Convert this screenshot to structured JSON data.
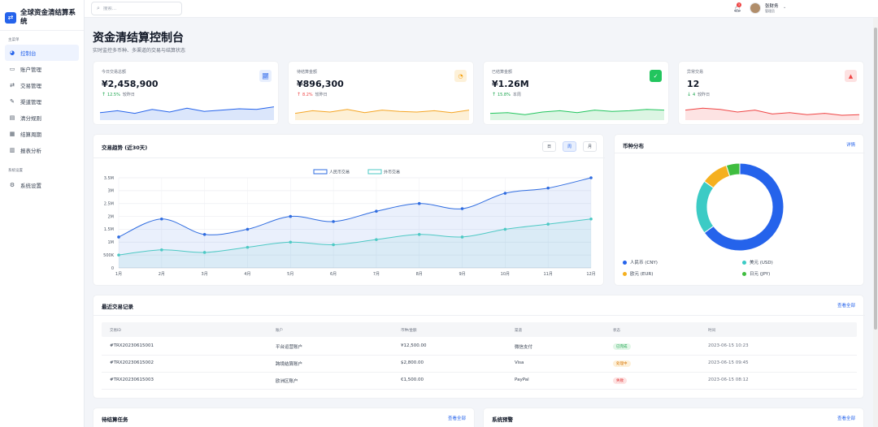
{
  "brand": {
    "name": "全球资金清结算系统",
    "icon": "exchange-icon"
  },
  "sidebar": {
    "section_main": "主菜单",
    "section_settings": "系统设置",
    "items": [
      {
        "label": "控制台",
        "icon": "dashboard-icon"
      },
      {
        "label": "账户管理",
        "icon": "card-icon"
      },
      {
        "label": "交易管理",
        "icon": "exchange-icon"
      },
      {
        "label": "渠道管理",
        "icon": "plug-icon"
      },
      {
        "label": "清分规则",
        "icon": "rule-icon"
      },
      {
        "label": "结算周期",
        "icon": "calendar-icon"
      },
      {
        "label": "报表分析",
        "icon": "chart-icon"
      }
    ],
    "settings_item": {
      "label": "系统设置",
      "icon": "gear-icon"
    }
  },
  "topbar": {
    "search_placeholder": "搜索...",
    "notification_count": "3",
    "user_name": "张财务",
    "user_role": "管理员"
  },
  "page": {
    "title": "资金清结算控制台",
    "subtitle": "实时监控多币种、多渠道的交易与结算状态"
  },
  "kpis": [
    {
      "label": "今日交易总额",
      "value": "¥2,458,900",
      "trend": "12.5%",
      "trend_note": "较昨日",
      "direction": "up",
      "trend_color": "#16a34a",
      "icon": "trend-chart-icon",
      "icon_color": "#2563eb",
      "icon_bg": "#e8effd",
      "line_color": "#2563eb",
      "fill_color": "#dbe6fb"
    },
    {
      "label": "待结算金额",
      "value": "¥896,300",
      "trend": "8.2%",
      "trend_note": "较昨日",
      "direction": "up",
      "trend_color": "#ef4444",
      "icon": "clock-icon",
      "icon_color": "#f59e0b",
      "icon_bg": "#fdf1d9",
      "line_color": "#f5a524",
      "fill_color": "#fdf0d6"
    },
    {
      "label": "已结算金额",
      "value": "¥1.26M",
      "trend": "15.8%",
      "trend_note": "本周",
      "direction": "up",
      "trend_color": "#16a34a",
      "icon": "check-icon",
      "icon_color": "#ffffff",
      "icon_bg": "#22c55e",
      "line_color": "#22c55e",
      "fill_color": "#dcf5e3"
    },
    {
      "label": "异常交易",
      "value": "12",
      "trend": "4",
      "trend_note": "较昨日",
      "direction": "down",
      "trend_color": "#16a34a",
      "icon": "warning-icon",
      "icon_color": "#ef4444",
      "icon_bg": "#fde2e2",
      "line_color": "#ef4444",
      "fill_color": "#fde3e3"
    }
  ],
  "trend_card": {
    "title": "交易趋势 (近30天)",
    "segments": [
      {
        "label": "日",
        "active": false
      },
      {
        "label": "周",
        "active": true
      },
      {
        "label": "月",
        "active": false
      }
    ]
  },
  "chart_data": [
    {
      "type": "line",
      "title": "交易趋势 (近30天)",
      "categories": [
        "1月",
        "2月",
        "3月",
        "4月",
        "5月",
        "6月",
        "7月",
        "8月",
        "9月",
        "10月",
        "11月",
        "12月"
      ],
      "series": [
        {
          "name": "人民币交易",
          "values": [
            1200000,
            1900000,
            1300000,
            1500000,
            2000000,
            1800000,
            2200000,
            2500000,
            2300000,
            2900000,
            3100000,
            3500000
          ],
          "color": "#2f6ce0"
        },
        {
          "name": "外币交易",
          "values": [
            500000,
            700000,
            600000,
            800000,
            1000000,
            900000,
            1100000,
            1300000,
            1200000,
            1500000,
            1700000,
            1900000
          ],
          "color": "#4dc9c4"
        }
      ],
      "y_ticks": [
        "0",
        "500K",
        "1M",
        "1.5M",
        "2M",
        "2.5M",
        "3M",
        "3.5M"
      ],
      "ylim": [
        0,
        3500000
      ],
      "grid": true,
      "legend": "top-center"
    },
    {
      "type": "pie",
      "title": "币种分布",
      "categories": [
        "人民币 (CNY)",
        "美元 (USD)",
        "欧元 (EUR)",
        "日元 (JPY)"
      ],
      "values": [
        65,
        20,
        10,
        5
      ],
      "colors": [
        "#2563eb",
        "#3ccbc5",
        "#f5b01f",
        "#3fbd3f"
      ],
      "legend": "bottom"
    }
  ],
  "currency_card": {
    "title": "币种分布",
    "link": "详情"
  },
  "transactions": {
    "title": "最近交易记录",
    "link": "查看全部",
    "headers": [
      "交易ID",
      "账户",
      "币种/金额",
      "渠道",
      "状态",
      "时间"
    ],
    "rows": [
      {
        "id": "#TRX20230615001",
        "account": "平台运营账户",
        "amount": "¥12,500.00",
        "channel": "微信支付",
        "status": "已完成",
        "status_color": "#16a34a",
        "status_bg": "#e3f6e8",
        "time": "2023-06-15 10:23"
      },
      {
        "id": "#TRX20230615002",
        "account": "跨境结算账户",
        "amount": "$2,800.00",
        "channel": "Visa",
        "status": "处理中",
        "status_color": "#d97706",
        "status_bg": "#fdf0d9",
        "time": "2023-06-15 09:45"
      },
      {
        "id": "#TRX20230615003",
        "account": "欧洲区账户",
        "amount": "€1,500.00",
        "channel": "PayPal",
        "status": "失败",
        "status_color": "#dc2626",
        "status_bg": "#fde2e2",
        "time": "2023-06-15 08:12"
      }
    ]
  },
  "pending_card": {
    "title": "待结算任务",
    "link": "查看全部"
  },
  "alerts_card": {
    "title": "系统预警",
    "link": "查看全部"
  }
}
